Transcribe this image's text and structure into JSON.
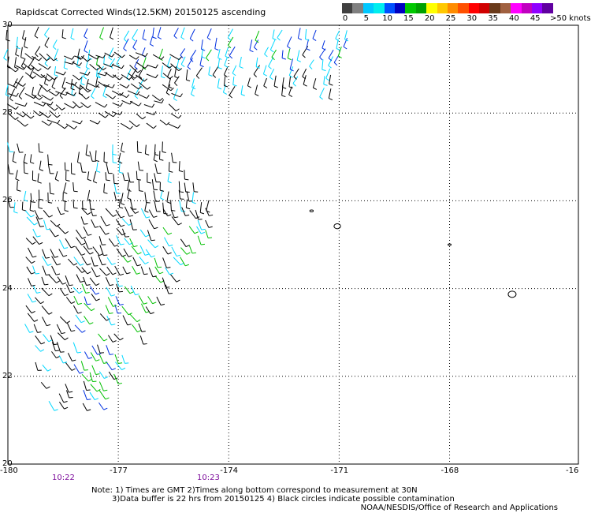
{
  "title": "Rapidscat Corrected Winds(12.5KM) 20150125 ascending",
  "speed_scale": {
    "labels": [
      "0",
      "5",
      "10",
      "15",
      "20",
      "25",
      "30",
      "35",
      "40",
      "45",
      ">50 knots"
    ],
    "colors": [
      "#404040",
      "#808080",
      "#00c8ff",
      "#00eeee",
      "#0050ff",
      "#0000c0",
      "#00c800",
      "#00a000",
      "#ffff00",
      "#ffc800",
      "#ff8c00",
      "#ff5000",
      "#ff0000",
      "#d00000",
      "#6a3a1a",
      "#a06040",
      "#ff00ff",
      "#c000c0",
      "#9000ff",
      "#6000a0"
    ]
  },
  "axes": {
    "lon_labels": [
      "-180",
      "-177",
      "-174",
      "-171",
      "-168",
      "-16"
    ],
    "lat_labels": [
      "30",
      "28",
      "26",
      "24",
      "22",
      "20"
    ],
    "lon_range": [
      -180,
      -164.5
    ],
    "lat_range": [
      20,
      30
    ]
  },
  "times": [
    "10:22",
    "10:23"
  ],
  "notes": [
    "Note: 1) Times are GMT 2)Times along bottom correspond to measurement at 30N",
    "3)Data buffer is 22 hrs from 20150125 4) Black circles indicate possible contamination"
  ],
  "credit": "NOAA/NESDIS/Office of Research and Applications",
  "wind_barbs": {
    "colors": {
      "calm": "#000000",
      "light": "#00d8ff",
      "moderate": "#0030e0",
      "fresh": "#00c000"
    },
    "regions": [
      {
        "name": "north-band",
        "lat": [
          28.6,
          30
        ],
        "lon": [
          -180,
          -170.6
        ],
        "dir_deg": 250,
        "mix": [
          "calm",
          "light",
          "moderate",
          "fresh"
        ]
      },
      {
        "name": "north-west-swirl",
        "lat": [
          27.8,
          29.4
        ],
        "lon": [
          -180,
          -175.5
        ],
        "dir_deg": 330,
        "mix": [
          "calm"
        ]
      },
      {
        "name": "mid-west",
        "lat": [
          26.0,
          27.4
        ],
        "lon": [
          -180,
          -174
        ],
        "dir_deg": 270,
        "mix": [
          "calm",
          "light"
        ]
      },
      {
        "name": "southern-wedge",
        "lat": [
          21.2,
          26.0
        ],
        "lon": [
          -179.5,
          -174.2
        ],
        "dir_deg": 300,
        "mix": [
          "calm",
          "light",
          "moderate",
          "fresh"
        ]
      }
    ]
  }
}
